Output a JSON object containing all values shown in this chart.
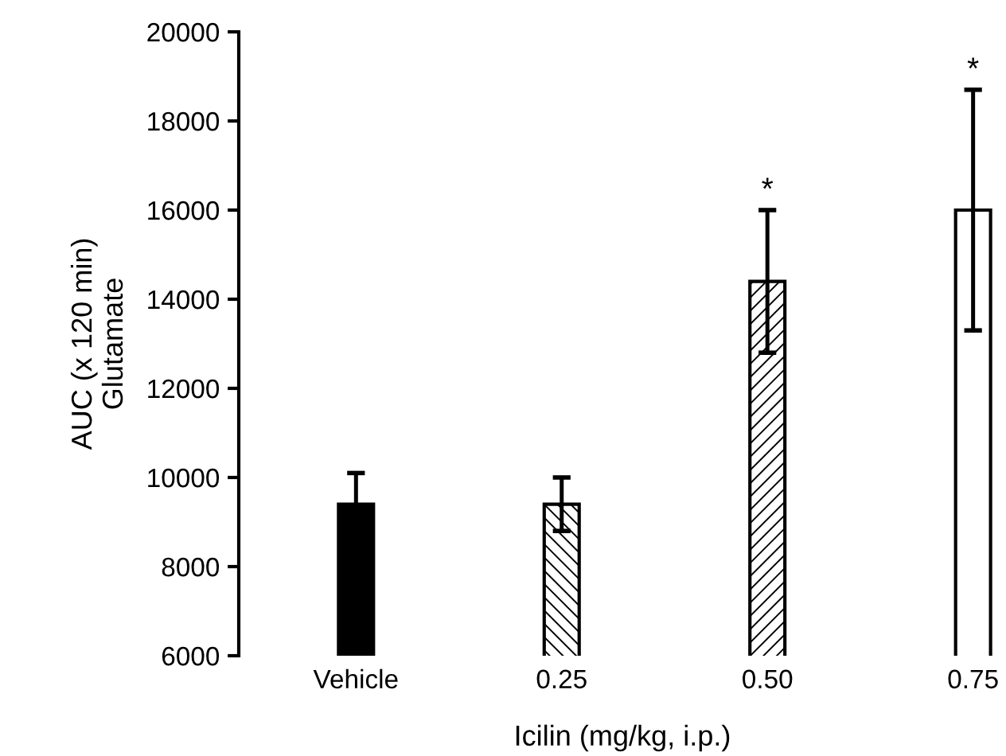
{
  "chart_data": {
    "type": "bar",
    "xlabel": "Icilin (mg/kg, i.p.)",
    "ylabel": "AUC (x 120 min)\nGlutamate",
    "categories": [
      "Vehicle",
      "0.25",
      "0.50",
      "0.75"
    ],
    "values": [
      9400,
      9400,
      14400,
      16000
    ],
    "errors": [
      700,
      600,
      1600,
      2700
    ],
    "colors": [
      "#000000",
      "#000000",
      "#000000",
      "#ffffff"
    ],
    "ylim": [
      6000,
      20000
    ],
    "yticks": [
      6000,
      8000,
      10000,
      12000,
      14000,
      16000,
      18000,
      20000
    ],
    "annotations": [
      {
        "text": "*",
        "x": "0.50",
        "y": 16000
      },
      {
        "text": "*",
        "x": "0.75",
        "y": 18700
      }
    ],
    "grid": false,
    "legend": false
  }
}
